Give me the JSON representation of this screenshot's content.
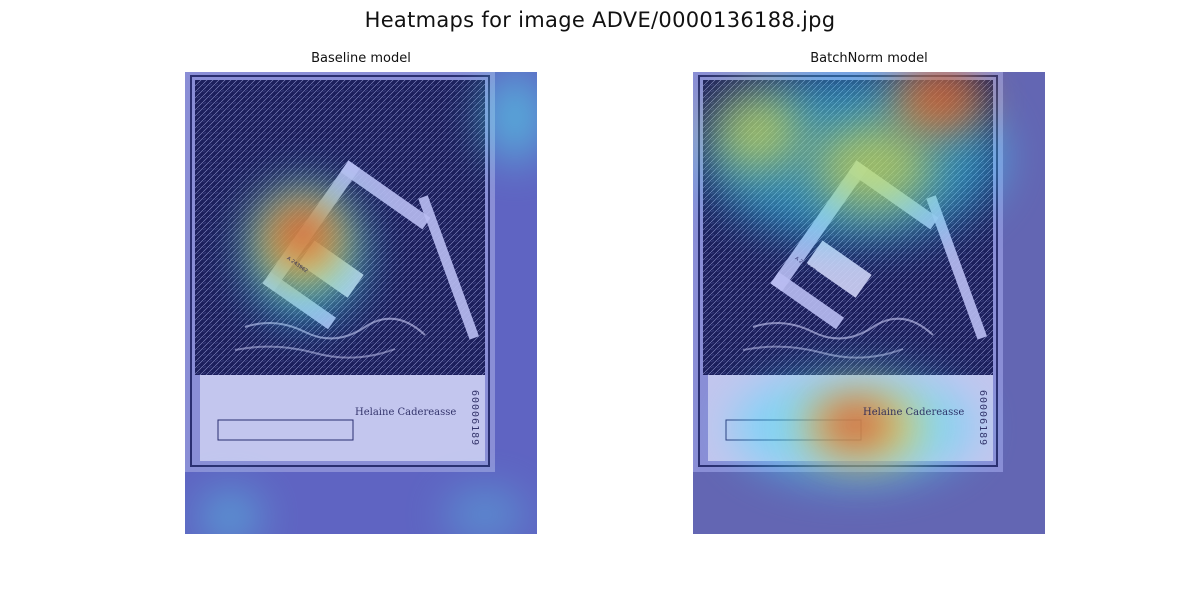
{
  "figure": {
    "title": "Heatmaps for image ADVE/0000136188.jpg"
  },
  "panels": [
    {
      "title": "Baseline model",
      "signature": "Helaine Cadereasse",
      "serial": "60006189",
      "tag_text": "A 243962"
    },
    {
      "title": "BatchNorm model",
      "signature": "Helaine Cadereasse",
      "serial": "60006189",
      "tag_text": "A 243962"
    }
  ],
  "colors": {
    "cold": "#4a52d8",
    "warm": "#d4262a",
    "mid": "#4ff0f0"
  }
}
